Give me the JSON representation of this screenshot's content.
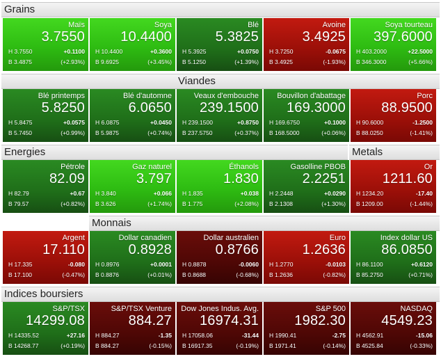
{
  "sections": [
    {
      "label": "Grains",
      "tiles": [
        {
          "name": "Maïs",
          "price": "3.7550",
          "high": "H 3.7550",
          "low": "B 3.4875",
          "change": "+0.1100",
          "pct": "(+2.93%)",
          "tone": "up"
        },
        {
          "name": "Soya",
          "price": "10.4400",
          "high": "H 10.4400",
          "low": "B 9.6925",
          "change": "+0.3600",
          "pct": "(+3.45%)",
          "tone": "up"
        },
        {
          "name": "Blé",
          "price": "5.3825",
          "high": "H 5.3925",
          "low": "B 5.1250",
          "change": "+0.0750",
          "pct": "(+1.39%)",
          "tone": "up2"
        },
        {
          "name": "Avoine",
          "price": "3.4925",
          "high": "H 3.7250",
          "low": "B 3.4925",
          "change": "-0.0675",
          "pct": "(-1.93%)",
          "tone": "down"
        },
        {
          "name": "Soya tourteau",
          "price": "397.6000",
          "high": "H 403.2000",
          "low": "B 346.3000",
          "change": "+22.5000",
          "pct": "(+5.66%)",
          "tone": "up"
        }
      ]
    },
    {
      "label": "Viandes",
      "tiles": [
        {
          "name": "Blé printemps",
          "price": "5.8250",
          "high": "H 5.8475",
          "low": "B 5.7450",
          "change": "+0.0575",
          "pct": "(+0.99%)",
          "tone": "up2"
        },
        {
          "name": "Blé d'automne",
          "price": "6.0650",
          "high": "H 6.0875",
          "low": "B 5.9875",
          "change": "+0.0450",
          "pct": "(+0.74%)",
          "tone": "up2"
        },
        {
          "name": "Veaux d'embouche",
          "price": "239.1500",
          "high": "H 239.1500",
          "low": "B 237.5750",
          "change": "+0.8750",
          "pct": "(+0.37%)",
          "tone": "up2"
        },
        {
          "name": "Bouvillon d'abattage",
          "price": "169.3000",
          "high": "H 169.6750",
          "low": "B 168.5000",
          "change": "+0.1000",
          "pct": "(+0.06%)",
          "tone": "up2"
        },
        {
          "name": "Porc",
          "price": "88.9500",
          "high": "H 90.6000",
          "low": "B 88.0250",
          "change": "-1.2500",
          "pct": "(-1.41%)",
          "tone": "down"
        }
      ]
    },
    {
      "label": "Energies",
      "label2": "Metals",
      "tiles": [
        {
          "name": "Pétrole",
          "price": "82.09",
          "high": "H 82.79",
          "low": "B 79.57",
          "change": "+0.67",
          "pct": "(+0.82%)",
          "tone": "up2"
        },
        {
          "name": "Gaz naturel",
          "price": "3.797",
          "high": "H 3.840",
          "low": "B 3.626",
          "change": "+0.066",
          "pct": "(+1.74%)",
          "tone": "up"
        },
        {
          "name": "Éthanols",
          "price": "1.830",
          "high": "H 1.835",
          "low": "B 1.775",
          "change": "+0.038",
          "pct": "(+2.08%)",
          "tone": "up"
        },
        {
          "name": "Gasolline PBOB",
          "price": "2.2251",
          "high": "H 2.2448",
          "low": "B 2.1308",
          "change": "+0.0290",
          "pct": "(+1.30%)",
          "tone": "up2"
        },
        {
          "name": "Or",
          "price": "1211.60",
          "high": "H 1234.20",
          "low": "B 1209.00",
          "change": "-17.40",
          "pct": "(-1.44%)",
          "tone": "down"
        }
      ]
    },
    {
      "label": "Monnais",
      "tiles": [
        {
          "name": "Argent",
          "price": "17.110",
          "high": "H 17.335",
          "low": "B 17.100",
          "change": "-0.080",
          "pct": "(-0.47%)",
          "tone": "down"
        },
        {
          "name": "Dollar canadien",
          "price": "0.8928",
          "high": "H 0.8976",
          "low": "B 0.8876",
          "change": "+0.0001",
          "pct": "(+0.01%)",
          "tone": "up2"
        },
        {
          "name": "Dollar australien",
          "price": "0.8766",
          "high": "H 0.8878",
          "low": "B 0.8688",
          "change": "-0.0060",
          "pct": "(-0.68%)",
          "tone": "down2"
        },
        {
          "name": "Euro",
          "price": "1.2636",
          "high": "H 1.2770",
          "low": "B 1.2636",
          "change": "-0.0103",
          "pct": "(-0.82%)",
          "tone": "down"
        },
        {
          "name": "Index dollar US",
          "price": "86.0850",
          "high": "H 86.1100",
          "low": "B 85.2750",
          "change": "+0.6120",
          "pct": "(+0.71%)",
          "tone": "up2"
        }
      ]
    },
    {
      "label": "Indices boursiers",
      "tiles": [
        {
          "name": "S&P/TSX",
          "price": "14299.08",
          "high": "H 14335.52",
          "low": "B 14268.77",
          "change": "+27.16",
          "pct": "(+0.19%)",
          "tone": "up2"
        },
        {
          "name": "S&P/TSX Venture",
          "price": "884.27",
          "high": "H 884.27",
          "low": "B 884.27",
          "change": "-1.35",
          "pct": "(-0.15%)",
          "tone": "down2"
        },
        {
          "name": "Dow Jones Indus. Avg.",
          "price": "16974.31",
          "high": "H 17058.06",
          "low": "B 16917.35",
          "change": "-31.44",
          "pct": "(-0.19%)",
          "tone": "down2"
        },
        {
          "name": "S&P 500",
          "price": "1982.30",
          "high": "H 1990.41",
          "low": "B 1971.41",
          "change": "-2.75",
          "pct": "(-0.14%)",
          "tone": "down2"
        },
        {
          "name": "NASDAQ",
          "price": "4549.23",
          "high": "H 4562.91",
          "low": "B 4525.84",
          "change": "-15.06",
          "pct": "(-0.33%)",
          "tone": "down2"
        }
      ]
    }
  ]
}
